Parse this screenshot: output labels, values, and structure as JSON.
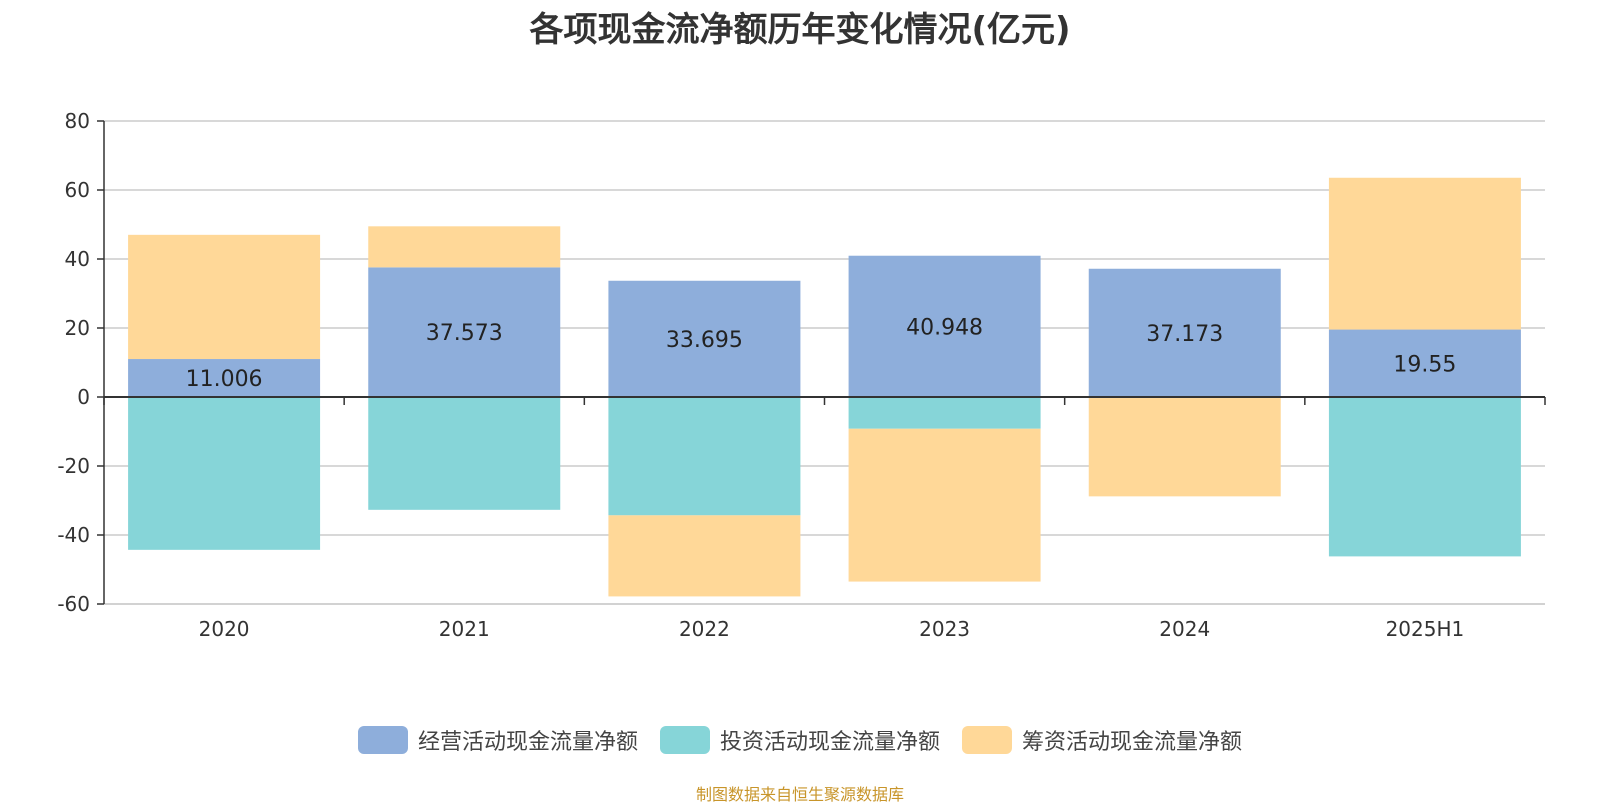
{
  "title": "各项现金流净额历年变化情况(亿元)",
  "source": "制图数据来自恒生聚源数据库",
  "legend": [
    {
      "name": "经营活动现金流量净额",
      "color": "#8eaedb"
    },
    {
      "name": "投资活动现金流量净额",
      "color": "#86d5d8"
    },
    {
      "name": "筹资活动现金流量净额",
      "color": "#ffd898"
    }
  ],
  "chart_data": {
    "type": "bar",
    "stacked": true,
    "title": "各项现金流净额历年变化情况(亿元)",
    "categories": [
      "2020",
      "2021",
      "2022",
      "2023",
      "2024",
      "2025H1"
    ],
    "ylim": [
      -60,
      80
    ],
    "yticks": [
      80,
      60,
      40,
      20,
      0,
      -20,
      -40,
      -60
    ],
    "grid": true,
    "legend_position": "bottom",
    "series": [
      {
        "name": "经营活动现金流量净额",
        "color": "#8eaedb",
        "values": [
          11.006,
          37.573,
          33.695,
          40.948,
          37.173,
          19.55
        ],
        "labels": [
          "11.006",
          "37.573",
          "33.695",
          "40.948",
          "37.173",
          "19.55"
        ]
      },
      {
        "name": "投资活动现金流量净额",
        "color": "#86d5d8",
        "values": [
          -44.3,
          -32.7,
          -34.3,
          -9.2,
          -0.3,
          -46.2
        ]
      },
      {
        "name": "筹资活动现金流量净额",
        "color": "#ffd898",
        "values": [
          36.0,
          11.9,
          -23.5,
          -44.3,
          -28.5,
          44.0
        ]
      }
    ]
  }
}
